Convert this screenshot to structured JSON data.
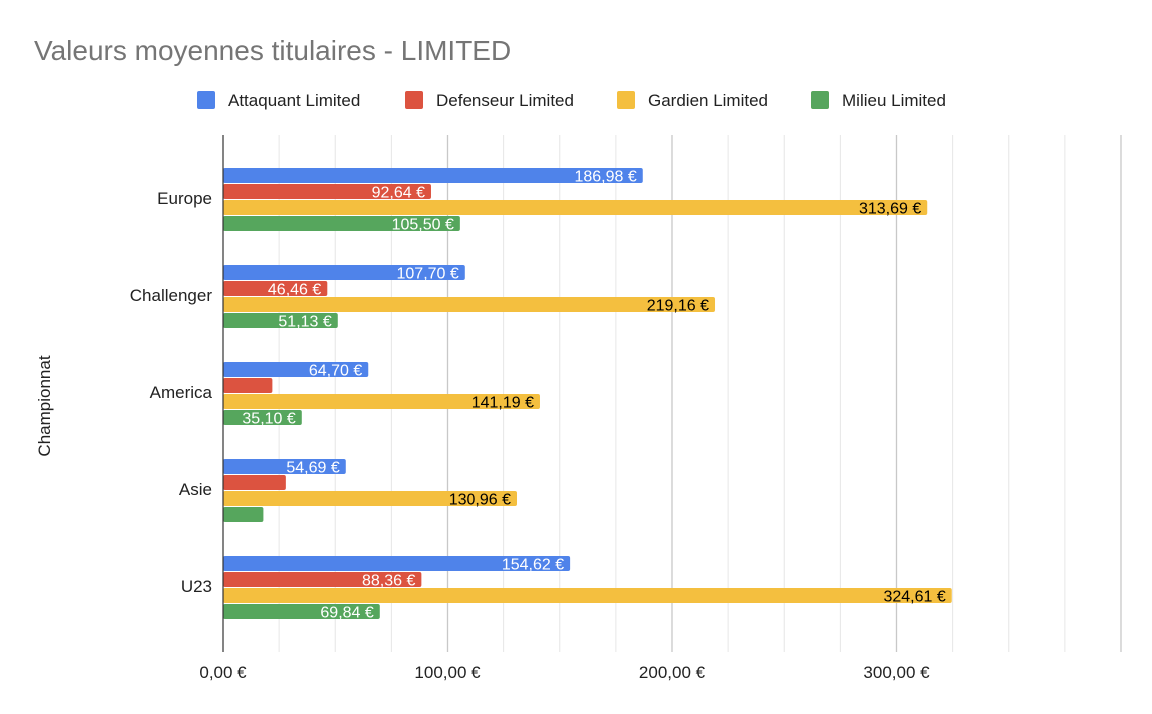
{
  "chart_data": {
    "type": "bar",
    "orientation": "horizontal",
    "title": "Valeurs moyennes titulaires - LIMITED",
    "ylabel": "Championnat",
    "xlabel": "",
    "categories": [
      "Europe",
      "Challenger",
      "America",
      "Asie",
      "U23"
    ],
    "series": [
      {
        "name": "Attaquant Limited",
        "color": "#4f83ea",
        "label_color": "#ffffff",
        "values": [
          186.98,
          107.7,
          64.7,
          54.69,
          154.62
        ],
        "labels": [
          "186,98 €",
          "107,70 €",
          "64,70 €",
          "54,69 €",
          "154,62 €"
        ]
      },
      {
        "name": "Defenseur Limited",
        "color": "#dc5340",
        "label_color": "#ffffff",
        "values": [
          92.64,
          46.46,
          22,
          28,
          88.36
        ],
        "labels": [
          "92,64 €",
          "46,46 €",
          "",
          "",
          "88,36 €"
        ]
      },
      {
        "name": "Gardien Limited",
        "color": "#f4bf3f",
        "label_color": "#000000",
        "values": [
          313.69,
          219.16,
          141.19,
          130.96,
          324.61
        ],
        "labels": [
          "313,69 €",
          "219,16 €",
          "141,19 €",
          "130,96 €",
          "324,61 €"
        ]
      },
      {
        "name": "Milieu Limited",
        "color": "#56a65d",
        "label_color": "#ffffff",
        "values": [
          105.5,
          51.13,
          35.1,
          18,
          69.84
        ],
        "labels": [
          "105,50 €",
          "51,13 €",
          "35,10 €",
          "",
          "69,84 €"
        ]
      }
    ],
    "xlim": [
      0,
      400
    ],
    "xticks": [
      0,
      100,
      200,
      300
    ],
    "xtick_labels": [
      "0,00 €",
      "100,00 €",
      "200,00 €",
      "300,00 €"
    ],
    "gridlines": "vertical, minor every 25",
    "legend": "top"
  }
}
